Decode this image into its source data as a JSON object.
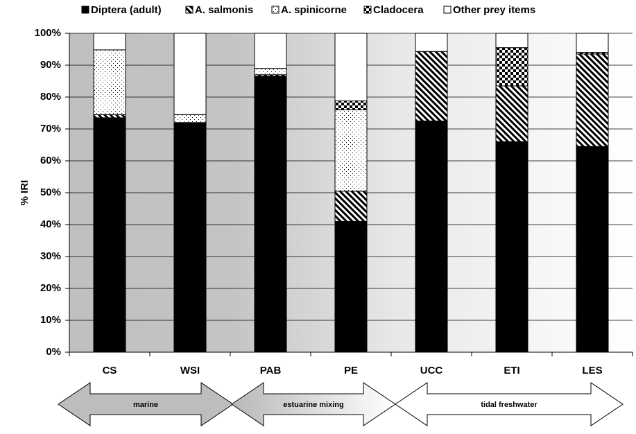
{
  "chart_data": {
    "type": "stacked-bar",
    "ylabel": "% IRI",
    "categories": [
      "CS",
      "WSI",
      "PAB",
      "PE",
      "UCC",
      "ETI",
      "LES"
    ],
    "series": [
      {
        "name": "Diptera (adult)",
        "color": "#000000",
        "pattern": "solid",
        "values": [
          73.5,
          72,
          86.5,
          41,
          72.5,
          66,
          64.5
        ]
      },
      {
        "name": "A. salmonis",
        "color": "#000000",
        "pattern": "hatch",
        "values": [
          1,
          0,
          0.5,
          9.5,
          21.8,
          17.5,
          29
        ]
      },
      {
        "name": "A. spinicorne",
        "color": "#000000",
        "pattern": "dots",
        "values": [
          20.3,
          2.5,
          2,
          25.5,
          0,
          0,
          0
        ]
      },
      {
        "name": "Cladocera",
        "color": "#000000",
        "pattern": "checker",
        "values": [
          0,
          0,
          0,
          2.8,
          0,
          12,
          0.5
        ]
      },
      {
        "name": "Other prey items",
        "color": "#ffffff",
        "pattern": "solid",
        "values": [
          5.2,
          25.5,
          11,
          21.2,
          5.7,
          4.5,
          6
        ]
      }
    ],
    "ylim": [
      0,
      100
    ],
    "yticks": [
      {
        "value": 0,
        "label": "0%"
      },
      {
        "value": 10,
        "label": "10%"
      },
      {
        "value": 20,
        "label": "20%"
      },
      {
        "value": 30,
        "label": "30%"
      },
      {
        "value": 40,
        "label": "40%"
      },
      {
        "value": 50,
        "label": "50%"
      },
      {
        "value": 60,
        "label": "60%"
      },
      {
        "value": 70,
        "label": "70%"
      },
      {
        "value": 80,
        "label": "80%"
      },
      {
        "value": 90,
        "label": "90%"
      },
      {
        "value": 100,
        "label": "100%"
      }
    ],
    "grid": true,
    "annotations": [
      "marine",
      "estuarine mixing",
      "tidal freshwater"
    ]
  }
}
